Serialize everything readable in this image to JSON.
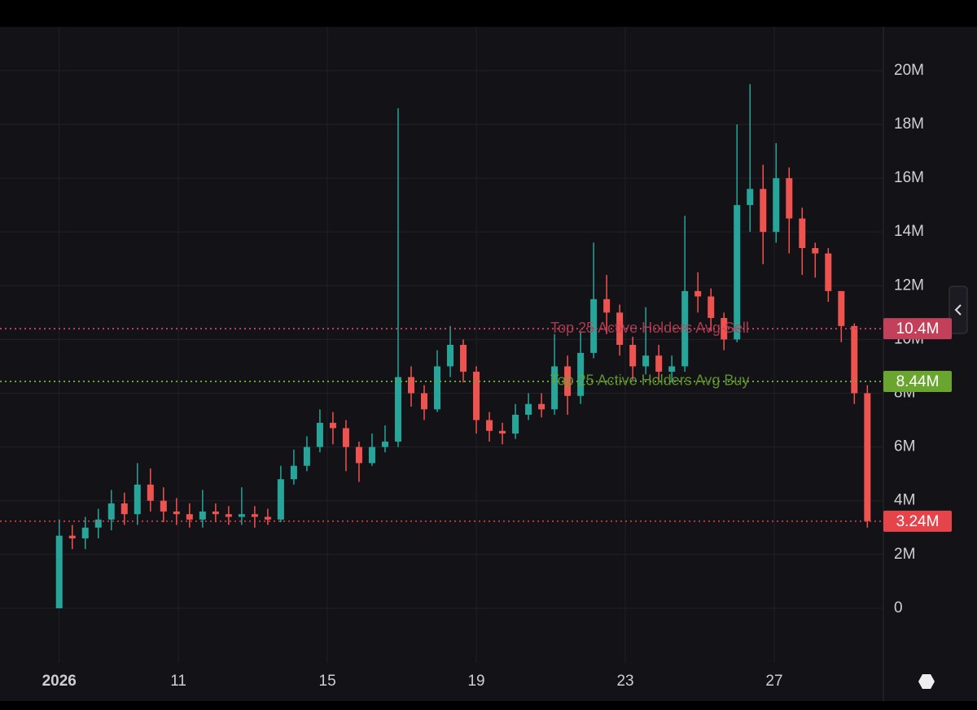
{
  "chart_data": {
    "type": "candlestick",
    "up_color": "#26a69a",
    "down_color": "#ef5350",
    "x": [
      7.8,
      8.15,
      8.5,
      8.85,
      9.2,
      9.55,
      9.9,
      10.25,
      10.6,
      10.95,
      11.3,
      11.65,
      12,
      12.35,
      12.7,
      13.05,
      13.4,
      13.75,
      14.1,
      14.45,
      14.8,
      15.15,
      15.5,
      15.85,
      16.2,
      16.55,
      16.9,
      17.25,
      17.6,
      17.95,
      18.3,
      18.65,
      19,
      19.35,
      19.7,
      20.05,
      20.4,
      20.75,
      21.1,
      21.45,
      21.8,
      22.15,
      22.5,
      22.85,
      23.2,
      23.55,
      23.9,
      24.25,
      24.6,
      24.95,
      25.3,
      25.65,
      26,
      26.35,
      26.7,
      27.05,
      27.4,
      27.75,
      28.1,
      28.45,
      28.8,
      29.15,
      29.5
    ],
    "open": [
      0,
      2.7,
      2.6,
      3.0,
      3.3,
      3.9,
      3.5,
      4.6,
      4.0,
      3.6,
      3.5,
      3.3,
      3.6,
      3.5,
      3.4,
      3.5,
      3.4,
      3.3,
      4.8,
      5.3,
      6.0,
      6.9,
      6.7,
      6.0,
      5.4,
      6.0,
      6.2,
      8.6,
      8.0,
      7.4,
      9.0,
      9.8,
      8.8,
      7.0,
      6.6,
      6.5,
      7.2,
      7.6,
      7.4,
      9.0,
      7.9,
      9.5,
      11.5,
      11.0,
      9.8,
      9.0,
      9.4,
      8.8,
      9.0,
      11.8,
      11.6,
      10.8,
      10.0,
      15.0,
      15.6,
      14.0,
      16.0,
      14.5,
      13.4,
      13.2,
      11.8,
      10.5,
      8.0
    ],
    "high": [
      3.3,
      3.1,
      3.4,
      3.7,
      4.4,
      4.3,
      5.4,
      5.2,
      4.5,
      4.1,
      3.9,
      4.4,
      3.9,
      3.8,
      4.5,
      3.8,
      3.7,
      5.3,
      5.9,
      6.4,
      7.4,
      7.3,
      7.0,
      6.2,
      6.5,
      6.8,
      18.6,
      9.0,
      8.3,
      9.6,
      10.5,
      10.0,
      9.0,
      7.3,
      6.9,
      7.6,
      8.0,
      8.0,
      10.2,
      9.4,
      10.3,
      13.6,
      12.4,
      11.3,
      10.1,
      11.2,
      9.8,
      9.4,
      14.6,
      12.5,
      11.9,
      11.0,
      18.0,
      19.5,
      16.5,
      17.3,
      16.4,
      14.9,
      13.6,
      13.4,
      11.8,
      10.6,
      8.3
    ],
    "low": [
      0,
      2.2,
      2.2,
      2.6,
      2.9,
      3.1,
      3.1,
      3.6,
      3.2,
      3.1,
      3.0,
      3.0,
      3.2,
      3.1,
      3.1,
      3.0,
      3.1,
      3.2,
      4.6,
      5.1,
      5.8,
      6.1,
      5.1,
      4.7,
      5.3,
      5.8,
      6.0,
      7.5,
      7.0,
      7.3,
      8.6,
      8.4,
      6.5,
      6.2,
      6.1,
      6.3,
      7.0,
      7.1,
      7.2,
      7.2,
      7.6,
      9.3,
      10.2,
      9.4,
      8.5,
      8.7,
      8.5,
      8.4,
      8.8,
      11.0,
      10.3,
      9.6,
      9.9,
      14.0,
      12.8,
      13.6,
      13.2,
      12.4,
      12.3,
      11.4,
      9.9,
      7.6,
      3.0
    ],
    "close": [
      2.7,
      2.6,
      3.0,
      3.3,
      3.9,
      3.5,
      4.6,
      4.0,
      3.6,
      3.5,
      3.3,
      3.6,
      3.5,
      3.4,
      3.5,
      3.4,
      3.3,
      4.8,
      5.3,
      6.0,
      6.9,
      6.7,
      6.0,
      5.4,
      6.0,
      6.2,
      8.6,
      8.0,
      7.4,
      9.0,
      9.8,
      8.8,
      7.0,
      6.6,
      6.5,
      7.2,
      7.6,
      7.4,
      9.0,
      7.9,
      9.5,
      11.5,
      11.0,
      9.8,
      9.0,
      9.4,
      8.8,
      9.0,
      11.8,
      11.6,
      10.8,
      10.0,
      15.0,
      15.6,
      14.0,
      16.0,
      14.5,
      13.4,
      13.2,
      11.8,
      10.5,
      8.0,
      3.24
    ],
    "xlim": [
      6.21,
      29.93
    ],
    "xticks": [
      {
        "value": 7.8,
        "label": "2026"
      },
      11,
      15,
      19,
      23,
      27
    ],
    "ylim": [
      -2.03,
      21.63
    ],
    "yticks": [
      0,
      {
        "value": 2,
        "label": "2M"
      },
      {
        "value": 4,
        "label": "4M"
      },
      {
        "value": 6,
        "label": "6M"
      },
      {
        "value": 8,
        "label": "8M"
      },
      {
        "value": 10,
        "label": "10M"
      },
      {
        "value": 12,
        "label": "12M"
      },
      {
        "value": 14,
        "label": "14M"
      },
      {
        "value": 16,
        "label": "16M"
      },
      {
        "value": 18,
        "label": "18M"
      },
      {
        "value": 20,
        "label": "20M"
      }
    ],
    "grid": true,
    "reference_lines": [
      {
        "label": "Top 25 Active Holders Avg Sell",
        "value": 10.4,
        "value_label": "10.4M",
        "color": "#c2405a"
      },
      {
        "label": "Top 25 Active Holders Avg Buy",
        "value": 8.44,
        "value_label": "8.44M",
        "color": "#6aa530"
      }
    ],
    "price_line": {
      "value": 3.24,
      "value_label": "3.24M",
      "color": "#e5444b"
    }
  }
}
